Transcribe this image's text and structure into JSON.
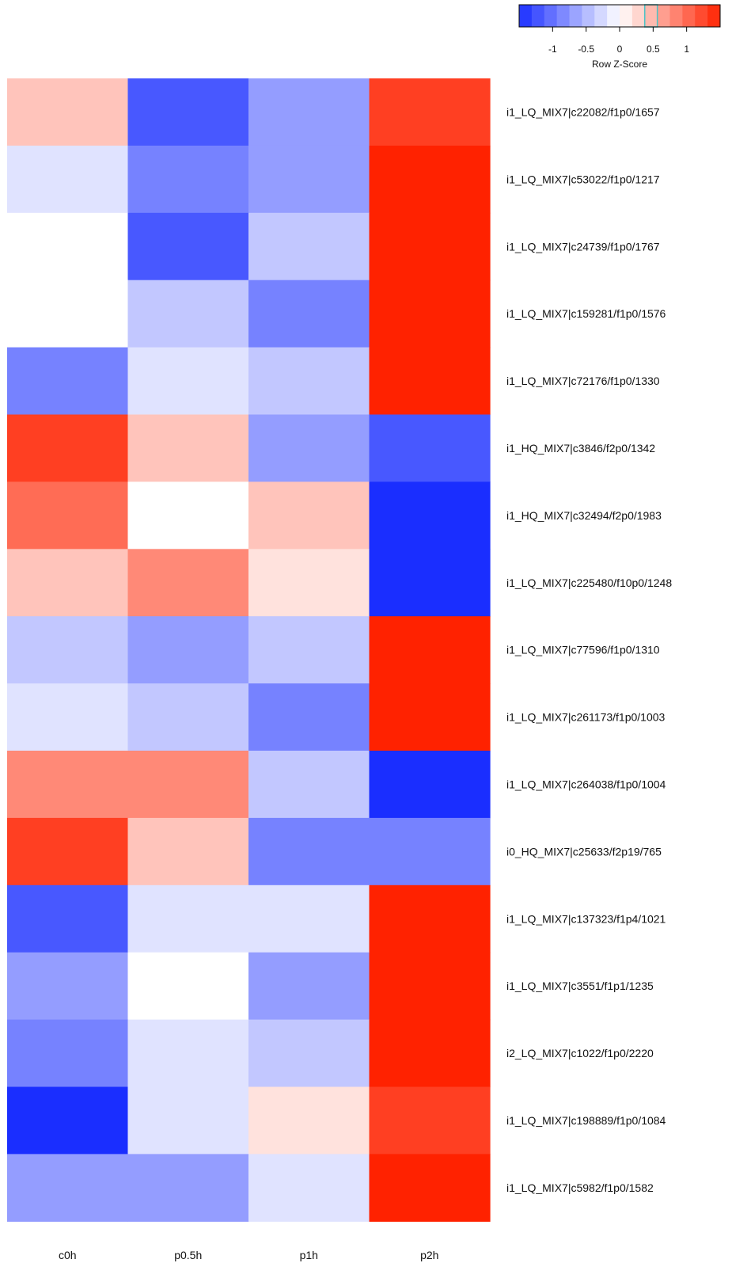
{
  "chart_data": {
    "type": "heatmap",
    "columns": [
      "c0h",
      "p0.5h",
      "p1h",
      "p2h"
    ],
    "rows": [
      {
        "label": "i1_LQ_MIX7|c22082/f1p0/1657",
        "values": [
          0.4,
          -1.2,
          -0.7,
          1.3
        ]
      },
      {
        "label": "i1_LQ_MIX7|c53022/f1p0/1217",
        "values": [
          -0.2,
          -0.9,
          -0.7,
          1.5
        ]
      },
      {
        "label": "i1_LQ_MIX7|c24739/f1p0/1767",
        "values": [
          0.0,
          -1.2,
          -0.4,
          1.5
        ]
      },
      {
        "label": "i1_LQ_MIX7|c159281/f1p0/1576",
        "values": [
          0.0,
          -0.4,
          -0.9,
          1.5
        ]
      },
      {
        "label": "i1_LQ_MIX7|c72176/f1p0/1330",
        "values": [
          -0.9,
          -0.2,
          -0.4,
          1.5
        ]
      },
      {
        "label": "i1_HQ_MIX7|c3846/f2p0/1342",
        "values": [
          1.3,
          0.4,
          -0.7,
          -1.2
        ]
      },
      {
        "label": "i1_HQ_MIX7|c32494/f2p0/1983",
        "values": [
          1.0,
          0.0,
          0.4,
          -1.5
        ]
      },
      {
        "label": "i1_LQ_MIX7|c225480/f10p0/1248",
        "values": [
          0.4,
          0.8,
          0.2,
          -1.5
        ]
      },
      {
        "label": "i1_LQ_MIX7|c77596/f1p0/1310",
        "values": [
          -0.4,
          -0.7,
          -0.4,
          1.5
        ]
      },
      {
        "label": "i1_LQ_MIX7|c261173/f1p0/1003",
        "values": [
          -0.2,
          -0.4,
          -0.9,
          1.5
        ]
      },
      {
        "label": "i1_LQ_MIX7|c264038/f1p0/1004",
        "values": [
          0.8,
          0.8,
          -0.4,
          -1.5
        ]
      },
      {
        "label": "i0_HQ_MIX7|c25633/f2p19/765",
        "values": [
          1.3,
          0.4,
          -0.9,
          -0.9
        ]
      },
      {
        "label": "i1_LQ_MIX7|c137323/f1p4/1021",
        "values": [
          -1.2,
          -0.2,
          -0.2,
          1.5
        ]
      },
      {
        "label": "i1_LQ_MIX7|c3551/f1p1/1235",
        "values": [
          -0.7,
          0.0,
          -0.7,
          1.5
        ]
      },
      {
        "label": "i2_LQ_MIX7|c1022/f1p0/2220",
        "values": [
          -0.9,
          -0.2,
          -0.4,
          1.5
        ]
      },
      {
        "label": "i1_LQ_MIX7|c198889/f1p0/1084",
        "values": [
          -1.5,
          -0.2,
          0.2,
          1.3
        ]
      },
      {
        "label": "i1_LQ_MIX7|c5982/f1p0/1582",
        "values": [
          -0.7,
          -0.7,
          -0.2,
          1.5
        ]
      }
    ],
    "color_key": {
      "title": "Row Z-Score",
      "range": [
        -1.5,
        1.5
      ],
      "ticks": [
        "-1",
        "-0.5",
        "0",
        "0.5",
        "1"
      ],
      "tick_values": [
        -1,
        -0.5,
        0,
        0.5,
        1
      ],
      "low_color": "#1a2eff",
      "mid_color": "#ffffff",
      "high_color": "#ff2200",
      "highlight_value": 0.5
    }
  }
}
